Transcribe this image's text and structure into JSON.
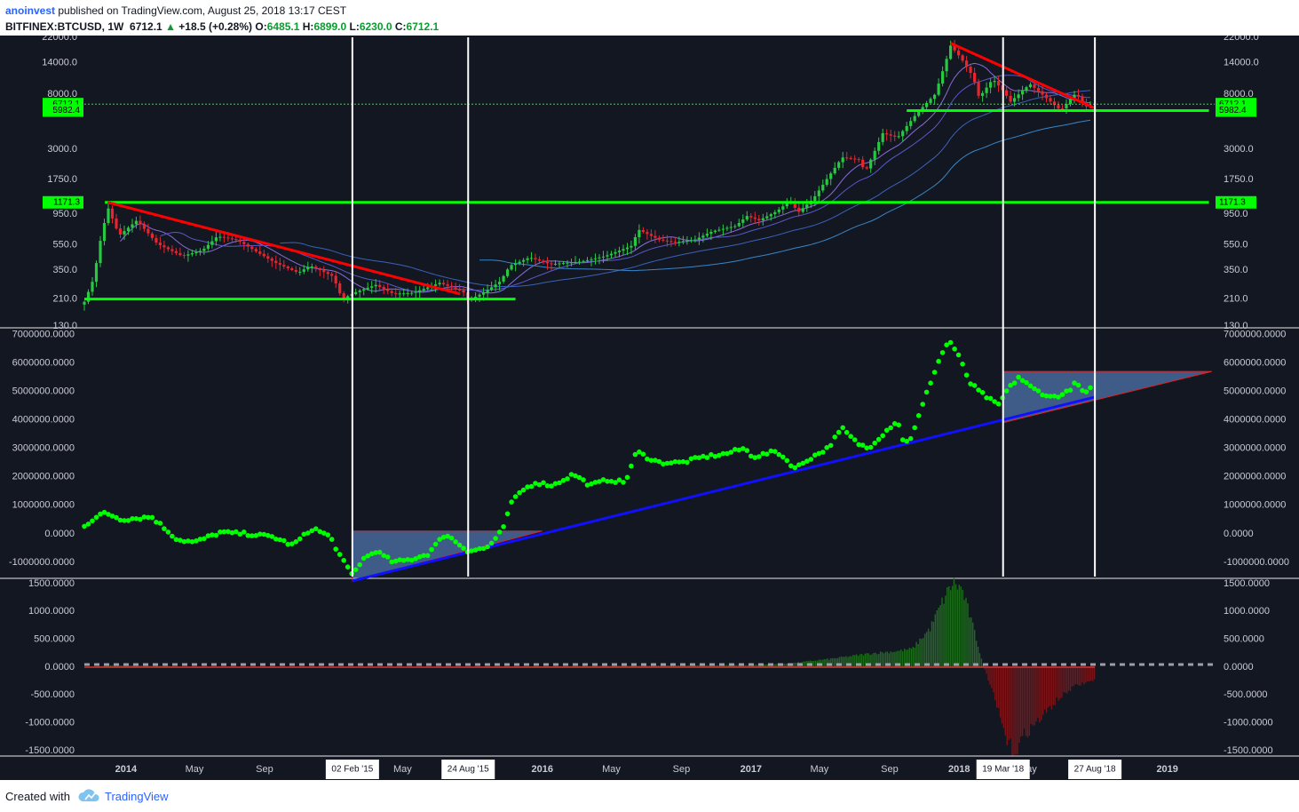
{
  "header": {
    "username": "anoinvest",
    "published_text": "published on TradingView.com, August 25, 2018 13:17 CEST",
    "symbol": "BITFINEX:BTCUSD, 1W",
    "last": "6712.1",
    "change": "+18.5 (+0.28%)",
    "o_label": "O:",
    "o_val": "6485.1",
    "h_label": "H:",
    "h_val": "6899.0",
    "l_label": "L:",
    "l_val": "6230.0",
    "c_label": "C:",
    "c_val": "6712.1"
  },
  "footer": {
    "created_with": "Created with",
    "brand": "TradingView"
  },
  "colors": {
    "background": "#131722",
    "candle_up": "#26c940",
    "candle_down": "#e8242f",
    "level_green": "#00ff00",
    "trend_red": "#ff0000",
    "trend_blue": "#1010ff",
    "dots": "#00ff00",
    "hist_pos": "#1e6b1e",
    "hist_neg": "#7a1418"
  },
  "chart_data": [
    {
      "type": "candlestick",
      "name": "price",
      "scale": "log",
      "ylim": [
        130,
        22000
      ],
      "y_ticks": [
        "22000.0",
        "14000.0",
        "8000.0",
        "3000.0",
        "1750.0",
        "950.0",
        "550.0",
        "350.0",
        "210.0",
        "130.0"
      ],
      "price_labels": [
        "6712.1",
        "5982.4",
        "1171.3"
      ],
      "levels": [
        {
          "value": 1171.3,
          "x_from": "2013-11-25",
          "x_to": "2019-03-15"
        },
        {
          "value": 210,
          "x_from": "2013-10-20",
          "x_to": "2015-11-15"
        },
        {
          "value": 5982.4,
          "x_from": "2017-10-01",
          "x_to": "2019-03-15"
        }
      ],
      "trendlines": [
        {
          "color": "red",
          "from": [
            "2013-11-30",
            1171.3
          ],
          "to": [
            "2015-08-10",
            230
          ]
        },
        {
          "color": "red",
          "from": [
            "2017-12-17",
            19800
          ],
          "to": [
            "2018-08-25",
            6300
          ]
        }
      ],
      "close_path": [
        [
          "2013-10-20",
          200
        ],
        [
          "2013-11-05",
          300
        ],
        [
          "2013-11-20",
          700
        ],
        [
          "2013-12-01",
          1050
        ],
        [
          "2013-12-20",
          650
        ],
        [
          "2014-01-20",
          850
        ],
        [
          "2014-02-25",
          560
        ],
        [
          "2014-04-10",
          450
        ],
        [
          "2014-05-15",
          500
        ],
        [
          "2014-06-10",
          640
        ],
        [
          "2014-07-15",
          600
        ],
        [
          "2014-08-20",
          480
        ],
        [
          "2014-09-20",
          400
        ],
        [
          "2014-10-30",
          335
        ],
        [
          "2014-11-20",
          380
        ],
        [
          "2014-12-30",
          315
        ],
        [
          "2015-01-15",
          210
        ],
        [
          "2015-02-10",
          240
        ],
        [
          "2015-03-15",
          270
        ],
        [
          "2015-04-15",
          230
        ],
        [
          "2015-05-20",
          235
        ],
        [
          "2015-07-05",
          280
        ],
        [
          "2015-08-15",
          240
        ],
        [
          "2015-08-24",
          205
        ],
        [
          "2015-09-20",
          235
        ],
        [
          "2015-10-20",
          290
        ],
        [
          "2015-11-05",
          380
        ],
        [
          "2015-12-10",
          440
        ],
        [
          "2016-01-15",
          390
        ],
        [
          "2016-03-10",
          410
        ],
        [
          "2016-04-20",
          450
        ],
        [
          "2016-06-05",
          540
        ],
        [
          "2016-06-18",
          720
        ],
        [
          "2016-07-25",
          600
        ],
        [
          "2016-08-20",
          575
        ],
        [
          "2016-09-25",
          605
        ],
        [
          "2016-10-25",
          700
        ],
        [
          "2016-12-05",
          770
        ],
        [
          "2016-12-25",
          920
        ],
        [
          "2017-01-15",
          850
        ],
        [
          "2017-02-15",
          1000
        ],
        [
          "2017-03-10",
          1200
        ],
        [
          "2017-03-25",
          980
        ],
        [
          "2017-04-20",
          1250
        ],
        [
          "2017-05-15",
          1800
        ],
        [
          "2017-06-10",
          2600
        ],
        [
          "2017-07-10",
          2500
        ],
        [
          "2017-07-20",
          2000
        ],
        [
          "2017-08-20",
          4000
        ],
        [
          "2017-09-15",
          3700
        ],
        [
          "2017-10-20",
          5800
        ],
        [
          "2017-11-20",
          8000
        ],
        [
          "2017-12-10",
          15000
        ],
        [
          "2017-12-17",
          19000
        ],
        [
          "2018-01-05",
          15000
        ],
        [
          "2018-01-25",
          11000
        ],
        [
          "2018-02-05",
          7500
        ],
        [
          "2018-03-01",
          10500
        ],
        [
          "2018-03-19",
          8500
        ],
        [
          "2018-04-01",
          7000
        ],
        [
          "2018-05-05",
          9600
        ],
        [
          "2018-06-01",
          7600
        ],
        [
          "2018-06-28",
          6000
        ],
        [
          "2018-07-25",
          8200
        ],
        [
          "2018-08-10",
          6400
        ],
        [
          "2018-08-25",
          6712.1
        ]
      ]
    },
    {
      "type": "scatter",
      "name": "dots",
      "ylim": [
        -1500000,
        7200000
      ],
      "y_ticks": [
        "7000000.0000",
        "6000000.0000",
        "5000000.0000",
        "4000000.0000",
        "3000000.0000",
        "2000000.0000",
        "1000000.0000",
        "0.0000",
        "-1000000.0000"
      ],
      "trendlines": [
        {
          "color": "blue",
          "from": [
            "2015-02-02",
            -1650000
          ],
          "to": [
            "2018-08-27",
            4800000
          ]
        }
      ],
      "triangles": [
        [
          [
            "2015-02-02",
            100000
          ],
          [
            "2016-01-01",
            100000
          ],
          [
            "2015-02-02",
            -1650000
          ]
        ],
        [
          [
            "2018-03-19",
            5700000
          ],
          [
            "2019-03-20",
            5700000
          ],
          [
            "2018-03-19",
            3900000
          ]
        ]
      ],
      "path": [
        [
          "2013-10-20",
          300000
        ],
        [
          "2013-11-25",
          750000
        ],
        [
          "2013-12-25",
          500000
        ],
        [
          "2014-02-15",
          600000
        ],
        [
          "2014-04-01",
          -200000
        ],
        [
          "2014-05-01",
          -300000
        ],
        [
          "2014-06-15",
          50000
        ],
        [
          "2014-08-01",
          0
        ],
        [
          "2014-09-15",
          -100000
        ],
        [
          "2014-10-20",
          -400000
        ],
        [
          "2014-11-25",
          200000
        ],
        [
          "2014-12-25",
          -100000
        ],
        [
          "2015-01-15",
          -900000
        ],
        [
          "2015-02-02",
          -1450000
        ],
        [
          "2015-02-20",
          -900000
        ],
        [
          "2015-03-15",
          -600000
        ],
        [
          "2015-04-15",
          -1000000
        ],
        [
          "2015-05-15",
          -900000
        ],
        [
          "2015-06-15",
          -700000
        ],
        [
          "2015-07-15",
          0
        ],
        [
          "2015-08-24",
          -600000
        ],
        [
          "2015-09-25",
          -500000
        ],
        [
          "2015-10-10",
          -200000
        ],
        [
          "2015-10-25",
          200000
        ],
        [
          "2015-11-05",
          1000000
        ],
        [
          "2015-11-25",
          1500000
        ],
        [
          "2015-12-20",
          1800000
        ],
        [
          "2016-01-20",
          1700000
        ],
        [
          "2016-02-25",
          2100000
        ],
        [
          "2016-03-25",
          1700000
        ],
        [
          "2016-04-25",
          1900000
        ],
        [
          "2016-05-25",
          1800000
        ],
        [
          "2016-06-15",
          2900000
        ],
        [
          "2016-07-01",
          2700000
        ],
        [
          "2016-07-25",
          2500000
        ],
        [
          "2016-09-01",
          2500000
        ],
        [
          "2016-10-10",
          2700000
        ],
        [
          "2016-11-15",
          2800000
        ],
        [
          "2016-12-20",
          3000000
        ],
        [
          "2017-01-05",
          2700000
        ],
        [
          "2017-02-15",
          2900000
        ],
        [
          "2017-03-20",
          2300000
        ],
        [
          "2017-04-10",
          2600000
        ],
        [
          "2017-05-15",
          3000000
        ],
        [
          "2017-06-10",
          3700000
        ],
        [
          "2017-07-05",
          3200000
        ],
        [
          "2017-07-25",
          3000000
        ],
        [
          "2017-08-20",
          3500000
        ],
        [
          "2017-09-15",
          4000000
        ],
        [
          "2017-09-25",
          3200000
        ],
        [
          "2017-10-10",
          3400000
        ],
        [
          "2017-10-25",
          4300000
        ],
        [
          "2017-11-15",
          5500000
        ],
        [
          "2017-12-01",
          6300000
        ],
        [
          "2017-12-15",
          6800000
        ],
        [
          "2018-01-01",
          6200000
        ],
        [
          "2018-01-20",
          5300000
        ],
        [
          "2018-02-05",
          5000000
        ],
        [
          "2018-02-25",
          4700000
        ],
        [
          "2018-03-10",
          4500000
        ],
        [
          "2018-03-25",
          5000000
        ],
        [
          "2018-04-15",
          5500000
        ],
        [
          "2018-05-10",
          5100000
        ],
        [
          "2018-06-10",
          4800000
        ],
        [
          "2018-07-05",
          4900000
        ],
        [
          "2018-07-25",
          5300000
        ],
        [
          "2018-08-10",
          4900000
        ],
        [
          "2018-08-25",
          5200000
        ]
      ]
    },
    {
      "type": "histogram",
      "name": "oscillator",
      "ylim": [
        -1550,
        1580
      ],
      "y_ticks": [
        "1500.0000",
        "1000.0000",
        "500.0000",
        "0.0000",
        "-500.0000",
        "-1000.0000",
        "-1500.0000"
      ],
      "path": [
        [
          "2013-10-20",
          0
        ],
        [
          "2013-12-10",
          35
        ],
        [
          "2014-03-15",
          20
        ],
        [
          "2014-05-01",
          -20
        ],
        [
          "2014-07-01",
          10
        ],
        [
          "2014-09-01",
          -15
        ],
        [
          "2015-03-01",
          -10
        ],
        [
          "2015-08-01",
          5
        ],
        [
          "2016-01-01",
          15
        ],
        [
          "2016-06-01",
          25
        ],
        [
          "2017-01-01",
          40
        ],
        [
          "2017-03-01",
          60
        ],
        [
          "2017-05-20",
          150
        ],
        [
          "2017-08-01",
          250
        ],
        [
          "2017-09-15",
          290
        ],
        [
          "2017-10-10",
          330
        ],
        [
          "2017-11-10",
          700
        ],
        [
          "2017-12-05",
          1250
        ],
        [
          "2017-12-20",
          1520
        ],
        [
          "2018-01-05",
          1400
        ],
        [
          "2018-01-25",
          700
        ],
        [
          "2018-02-10",
          80
        ],
        [
          "2018-03-01",
          -500
        ],
        [
          "2018-03-25",
          -1350
        ],
        [
          "2018-04-08",
          -1520
        ],
        [
          "2018-04-25",
          -1200
        ],
        [
          "2018-05-20",
          -950
        ],
        [
          "2018-06-20",
          -600
        ],
        [
          "2018-07-20",
          -350
        ],
        [
          "2018-08-25",
          -230
        ]
      ]
    }
  ],
  "vertical_markers": [
    "2015-02-02",
    "2015-08-24",
    "2018-03-19",
    "2018-08-27"
  ],
  "x_axis": {
    "ticks": [
      {
        "label": "2014",
        "date": "2014-01-01",
        "bold": true
      },
      {
        "label": "May",
        "date": "2014-05-01"
      },
      {
        "label": "Sep",
        "date": "2014-09-01"
      },
      {
        "label": "May",
        "date": "2015-05-01"
      },
      {
        "label": "2016",
        "date": "2016-01-01",
        "bold": true
      },
      {
        "label": "May",
        "date": "2016-05-01"
      },
      {
        "label": "Sep",
        "date": "2016-09-01"
      },
      {
        "label": "2017",
        "date": "2017-01-01",
        "bold": true
      },
      {
        "label": "May",
        "date": "2017-05-01"
      },
      {
        "label": "Sep",
        "date": "2017-09-01"
      },
      {
        "label": "2018",
        "date": "2018-01-01",
        "bold": true
      },
      {
        "label": "May",
        "date": "2018-05-01"
      },
      {
        "label": "2019",
        "date": "2019-01-01",
        "bold": true
      }
    ],
    "highlighted": [
      {
        "label": "02 Feb '15",
        "date": "2015-02-02"
      },
      {
        "label": "24 Aug '15",
        "date": "2015-08-24"
      },
      {
        "label": "19 Mar '18",
        "date": "2018-03-19"
      },
      {
        "label": "27 Aug '18",
        "date": "2018-08-27"
      }
    ]
  }
}
